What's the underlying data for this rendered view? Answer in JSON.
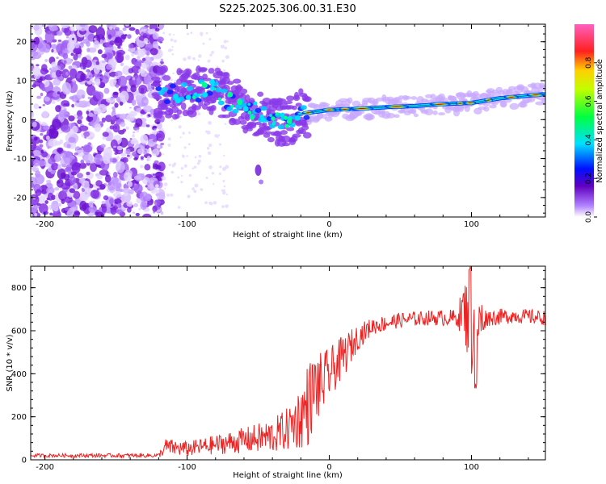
{
  "figure": {
    "title": "S225.2025.306.00.31.E30"
  },
  "chart_data": [
    {
      "type": "heatmap",
      "xlabel": "Height of straight line (km)",
      "ylabel": "Frequency (Hz)",
      "xlim": [
        -210,
        152
      ],
      "ylim": [
        -25,
        24.5
      ],
      "xticks": [
        -200,
        -100,
        0,
        100
      ],
      "xtick_labels": [
        "-200",
        "-100",
        "0",
        "100"
      ],
      "yticks": [
        -20,
        -10,
        0,
        10,
        20
      ],
      "ytick_labels": [
        "-20",
        "-10",
        "0",
        "10",
        "20"
      ],
      "colorbar": {
        "label": "Normalized spectral amplitude",
        "range": [
          0,
          1
        ],
        "ticks": [
          0.0,
          0.2,
          0.4,
          0.6,
          0.8
        ],
        "tick_labels": [
          "0.0",
          "0.2",
          "0.4",
          "0.6",
          "0.8"
        ]
      },
      "ridge": {
        "description_points": [
          [
            -120,
            7.5
          ],
          [
            -110,
            6.5
          ],
          [
            -100,
            7
          ],
          [
            -90,
            7.5
          ],
          [
            -80,
            8
          ],
          [
            -70,
            5
          ],
          [
            -60,
            3
          ],
          [
            -50,
            2
          ],
          [
            -40,
            0
          ],
          [
            -30,
            -1
          ],
          [
            -20,
            1.5
          ],
          [
            -10,
            2
          ],
          [
            0,
            2.5
          ],
          [
            20,
            2.8
          ],
          [
            40,
            3.2
          ],
          [
            60,
            3.5
          ],
          [
            80,
            4
          ],
          [
            100,
            4.3
          ],
          [
            120,
            5.5
          ],
          [
            150,
            6.5
          ]
        ],
        "noise_region_x": [
          -210,
          -122
        ],
        "isolated_blob": [
          -50,
          -13
        ]
      }
    },
    {
      "type": "line",
      "xlabel": "Height of straight line (km)",
      "ylabel": "SNR (10 * v/v)",
      "xlim": [
        -210,
        152
      ],
      "ylim": [
        0,
        900
      ],
      "xticks": [
        -200,
        -100,
        0,
        100
      ],
      "xtick_labels": [
        "-200",
        "-100",
        "0",
        "100"
      ],
      "yticks": [
        0,
        200,
        400,
        600,
        800
      ],
      "ytick_labels": [
        "0",
        "200",
        "400",
        "600",
        "800"
      ],
      "series": [
        {
          "name": "SNR",
          "color": "#ee2222",
          "envelope_x": [
            -210,
            -120,
            -115,
            -100,
            -80,
            -60,
            -40,
            -30,
            -20,
            -15,
            -10,
            -5,
            0,
            10,
            20,
            30,
            50,
            70,
            90,
            95,
            100,
            105,
            110,
            130,
            152
          ],
          "envelope_mean": [
            20,
            20,
            60,
            50,
            70,
            90,
            110,
            140,
            200,
            260,
            330,
            350,
            400,
            480,
            570,
            620,
            650,
            660,
            660,
            700,
            600,
            640,
            660,
            670,
            660
          ],
          "envelope_noise": [
            8,
            10,
            40,
            35,
            45,
            60,
            80,
            100,
            150,
            200,
            170,
            150,
            120,
            100,
            60,
            40,
            35,
            35,
            40,
            150,
            220,
            150,
            40,
            35,
            35
          ]
        }
      ]
    }
  ]
}
